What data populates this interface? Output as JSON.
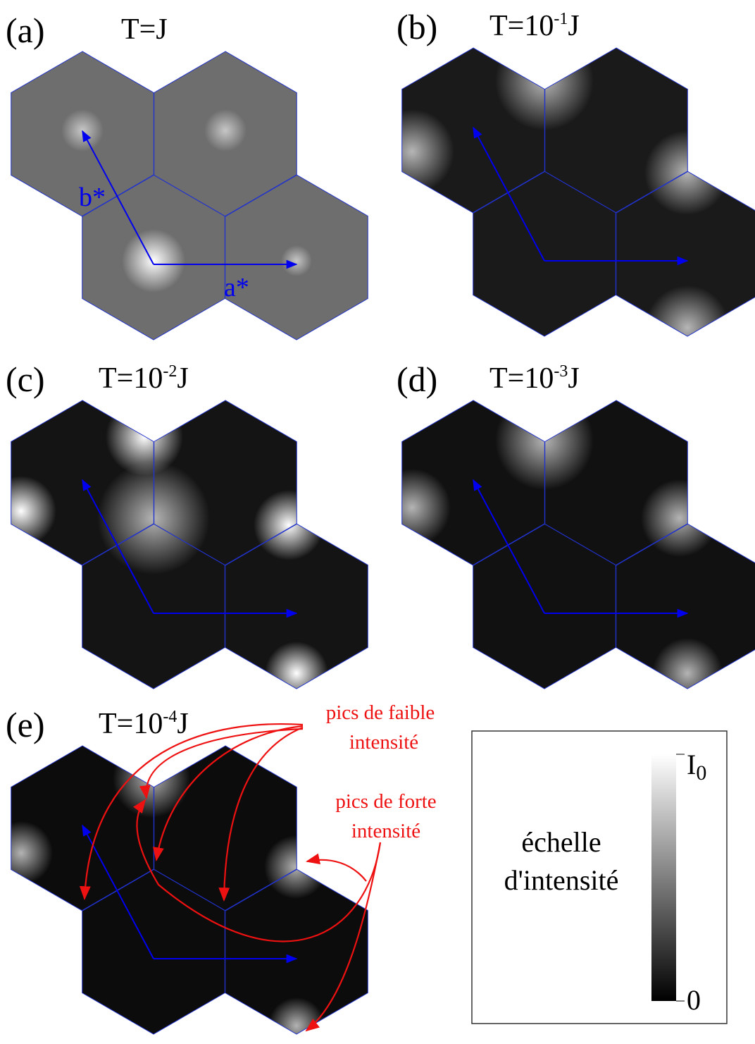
{
  "panels": [
    {
      "label": "(a)",
      "temperature": "T=J",
      "axes": {
        "a": "a*",
        "b": "b*"
      }
    },
    {
      "label": "(b)",
      "temperature": {
        "base": "T=10",
        "exponent": "-1",
        "unit": "J"
      }
    },
    {
      "label": "(c)",
      "temperature": {
        "base": "T=10",
        "exponent": "-2",
        "unit": "J"
      }
    },
    {
      "label": "(d)",
      "temperature": {
        "base": "T=10",
        "exponent": "-3",
        "unit": "J"
      }
    },
    {
      "label": "(e)",
      "temperature": {
        "base": "T=10",
        "exponent": "-4",
        "unit": "J"
      }
    }
  ],
  "annotations": {
    "weak_peaks": [
      "pics de faible",
      "intensité"
    ],
    "strong_peaks": [
      "pics de forte",
      "intensité"
    ]
  },
  "intensity_scale": {
    "title": [
      "échelle",
      "d'intensité"
    ],
    "max": {
      "symbol": "I",
      "subscript": "0"
    },
    "min": 0
  }
}
